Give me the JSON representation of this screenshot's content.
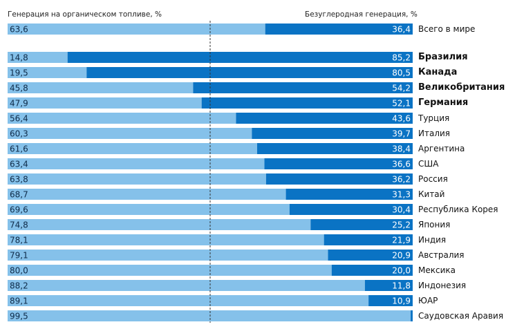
{
  "chart_data": {
    "type": "bar",
    "orientation": "horizontal",
    "stacked": true,
    "header_left": "Генерация на органическом топливе, %",
    "header_right": "Безуглеродная генерация, %",
    "xlim": [
      0,
      100
    ],
    "series": [
      {
        "name": "Генерация на органическом топливе, %",
        "color": "#85c1ea"
      },
      {
        "name": "Безуглеродная генерация, %",
        "color": "#0a73c4"
      }
    ],
    "rows": [
      {
        "category": "Всего в мире",
        "fossil": "63,6",
        "clean": "36,4",
        "fossil_value": 63.6,
        "clean_value": 36.4,
        "bold": false,
        "group": 0
      },
      {
        "category": "Бразилия",
        "fossil": "14,8",
        "clean": "85,2",
        "fossil_value": 14.8,
        "clean_value": 85.2,
        "bold": true,
        "group": 1
      },
      {
        "category": "Канада",
        "fossil": "19,5",
        "clean": "80,5",
        "fossil_value": 19.5,
        "clean_value": 80.5,
        "bold": true,
        "group": 1
      },
      {
        "category": "Великобритания",
        "fossil": "45,8",
        "clean": "54,2",
        "fossil_value": 45.8,
        "clean_value": 54.2,
        "bold": true,
        "group": 1
      },
      {
        "category": "Германия",
        "fossil": "47,9",
        "clean": "52,1",
        "fossil_value": 47.9,
        "clean_value": 52.1,
        "bold": true,
        "group": 1
      },
      {
        "category": "Турция",
        "fossil": "56,4",
        "clean": "43,6",
        "fossil_value": 56.4,
        "clean_value": 43.6,
        "bold": false,
        "group": 1
      },
      {
        "category": "Италия",
        "fossil": "60,3",
        "clean": "39,7",
        "fossil_value": 60.3,
        "clean_value": 39.7,
        "bold": false,
        "group": 1
      },
      {
        "category": "Аргентина",
        "fossil": "61,6",
        "clean": "38,4",
        "fossil_value": 61.6,
        "clean_value": 38.4,
        "bold": false,
        "group": 1
      },
      {
        "category": "США",
        "fossil": "63,4",
        "clean": "36,6",
        "fossil_value": 63.4,
        "clean_value": 36.6,
        "bold": false,
        "group": 1
      },
      {
        "category": "Россия",
        "fossil": "63,8",
        "clean": "36,2",
        "fossil_value": 63.8,
        "clean_value": 36.2,
        "bold": false,
        "group": 1
      },
      {
        "category": "Китай",
        "fossil": "68,7",
        "clean": "31,3",
        "fossil_value": 68.7,
        "clean_value": 31.3,
        "bold": false,
        "group": 1
      },
      {
        "category": "Республика Корея",
        "fossil": "69,6",
        "clean": "30,4",
        "fossil_value": 69.6,
        "clean_value": 30.4,
        "bold": false,
        "group": 1
      },
      {
        "category": "Япония",
        "fossil": "74,8",
        "clean": "25,2",
        "fossil_value": 74.8,
        "clean_value": 25.2,
        "bold": false,
        "group": 1
      },
      {
        "category": "Индия",
        "fossil": "78,1",
        "clean": "21,9",
        "fossil_value": 78.1,
        "clean_value": 21.9,
        "bold": false,
        "group": 1
      },
      {
        "category": "Австралия",
        "fossil": "79,1",
        "clean": "20,9",
        "fossil_value": 79.1,
        "clean_value": 20.9,
        "bold": false,
        "group": 1
      },
      {
        "category": "Мексика",
        "fossil": "80,0",
        "clean": "20,0",
        "fossil_value": 80.0,
        "clean_value": 20.0,
        "bold": false,
        "group": 1
      },
      {
        "category": "Индонезия",
        "fossil": "88,2",
        "clean": "11,8",
        "fossil_value": 88.2,
        "clean_value": 11.8,
        "bold": false,
        "group": 1
      },
      {
        "category": "ЮАР",
        "fossil": "89,1",
        "clean": "10,9",
        "fossil_value": 89.1,
        "clean_value": 10.9,
        "bold": false,
        "group": 1
      },
      {
        "category": "Саудовская Аравия",
        "fossil": "99,5",
        "clean": "",
        "fossil_value": 99.5,
        "clean_value": 0.5,
        "bold": false,
        "group": 1
      }
    ]
  }
}
